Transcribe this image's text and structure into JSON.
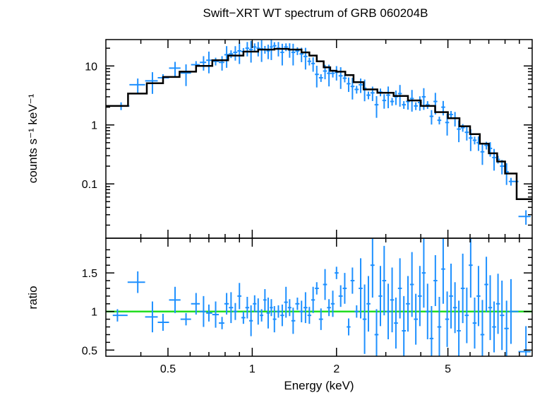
{
  "chart_data": [
    {
      "panel": "spectrum",
      "type": "scatter",
      "title": "Swift−XRT WT spectrum of GRB 060204B",
      "xlabel": "",
      "ylabel": "counts s⁻¹ keV⁻¹",
      "x_scale": "log",
      "y_scale": "log",
      "xlim": [
        0.3,
        10
      ],
      "ylim": [
        0.012,
        28
      ],
      "yticks": [
        0.1,
        1,
        10
      ],
      "ytick_labels": [
        "0.1",
        "1",
        "10"
      ],
      "grid": false,
      "colors": {
        "data": "#1e90ff",
        "model": "#000000"
      },
      "series": [
        {
          "kind": "data",
          "x": [
            0.34,
            0.39,
            0.44,
            0.48,
            0.53,
            0.58,
            0.63,
            0.67,
            0.7,
            0.74,
            0.78,
            0.81,
            0.84,
            0.87,
            0.9,
            0.93,
            0.96,
            0.99,
            1.02,
            1.05,
            1.08,
            1.11,
            1.14,
            1.17,
            1.2,
            1.24,
            1.28,
            1.32,
            1.36,
            1.4,
            1.45,
            1.5,
            1.55,
            1.6,
            1.65,
            1.7,
            1.76,
            1.82,
            1.88,
            1.94,
            2.0,
            2.07,
            2.14,
            2.21,
            2.28,
            2.36,
            2.44,
            2.52,
            2.6,
            2.69,
            2.78,
            2.87,
            2.96,
            3.06,
            3.16,
            3.26,
            3.37,
            3.48,
            3.6,
            3.72,
            3.84,
            3.97,
            4.1,
            4.23,
            4.37,
            4.51,
            4.66,
            4.81,
            4.97,
            5.13,
            5.3,
            5.47,
            5.65,
            5.84,
            6.03,
            6.23,
            6.43,
            6.64,
            6.86,
            7.08,
            7.31,
            7.55,
            7.8,
            8.1,
            8.4,
            9.5
          ],
          "y": [
            2.1,
            4.8,
            5.6,
            6.3,
            9.2,
            7.6,
            10.5,
            11.5,
            12.5,
            12.0,
            11.5,
            15.5,
            16.0,
            17.0,
            18.0,
            17.5,
            20.0,
            19.0,
            21.0,
            20.0,
            19.5,
            19.0,
            18.0,
            21.0,
            22.0,
            20.0,
            17.0,
            21.0,
            19.0,
            17.0,
            18.0,
            16.0,
            14.5,
            12.0,
            11.0,
            7.2,
            6.3,
            8.2,
            7.5,
            7.5,
            7.8,
            6.8,
            6.2,
            5.0,
            4.5,
            4.0,
            4.8,
            4.2,
            3.2,
            3.5,
            2.2,
            3.6,
            2.6,
            3.2,
            2.5,
            3.0,
            3.4,
            2.2,
            2.5,
            2.8,
            2.1,
            2.4,
            3.0,
            2.2,
            1.4,
            2.5,
            1.2,
            2.0,
            1.1,
            1.5,
            1.3,
            0.85,
            0.9,
            0.75,
            0.6,
            0.55,
            0.5,
            0.35,
            0.45,
            0.4,
            0.28,
            0.26,
            0.2,
            0.16,
            0.11,
            0.028
          ]
        },
        {
          "kind": "model",
          "x": [
            0.3,
            0.36,
            0.42,
            0.48,
            0.55,
            0.63,
            0.72,
            0.82,
            0.93,
            1.05,
            1.2,
            1.35,
            1.5,
            1.6,
            1.7,
            1.8,
            1.9,
            2.0,
            2.15,
            2.3,
            2.5,
            2.8,
            3.2,
            3.6,
            4.0,
            4.5,
            5.0,
            5.5,
            6.0,
            6.5,
            7.0,
            7.5,
            8.0,
            8.8,
            10.0
          ],
          "y": [
            2.1,
            3.4,
            5.1,
            6.5,
            8.0,
            10.0,
            12.5,
            15.0,
            17.5,
            19.0,
            19.5,
            19.0,
            17.0,
            15.0,
            12.0,
            9.5,
            8.3,
            8.0,
            7.0,
            5.3,
            4.0,
            3.5,
            3.1,
            2.6,
            2.1,
            1.65,
            1.3,
            0.95,
            0.7,
            0.48,
            0.33,
            0.24,
            0.15,
            0.055,
            0.055
          ]
        }
      ]
    },
    {
      "panel": "ratio",
      "type": "scatter",
      "title": "",
      "xlabel": "Energy (keV)",
      "ylabel": "ratio",
      "x_scale": "log",
      "y_scale": "linear",
      "xlim": [
        0.3,
        10
      ],
      "ylim": [
        0.42,
        1.95
      ],
      "xticks": [
        0.5,
        1,
        2,
        5
      ],
      "xtick_labels": [
        "0.5",
        "1",
        "2",
        "5"
      ],
      "yticks": [
        0.5,
        1,
        1.5
      ],
      "ytick_labels": [
        "0.5",
        "1",
        "1.5"
      ],
      "reference_line": 1,
      "grid": false,
      "colors": {
        "data": "#1e90ff",
        "reference": "#22dd22"
      },
      "series": [
        {
          "kind": "data",
          "x": [
            0.33,
            0.39,
            0.44,
            0.48,
            0.53,
            0.58,
            0.63,
            0.67,
            0.7,
            0.74,
            0.78,
            0.81,
            0.84,
            0.87,
            0.9,
            0.93,
            0.96,
            0.99,
            1.02,
            1.05,
            1.08,
            1.11,
            1.14,
            1.17,
            1.2,
            1.24,
            1.28,
            1.32,
            1.36,
            1.4,
            1.45,
            1.5,
            1.55,
            1.6,
            1.65,
            1.7,
            1.76,
            1.82,
            1.88,
            1.94,
            2.0,
            2.07,
            2.14,
            2.21,
            2.28,
            2.36,
            2.44,
            2.52,
            2.6,
            2.69,
            2.78,
            2.87,
            2.96,
            3.06,
            3.16,
            3.26,
            3.37,
            3.48,
            3.6,
            3.72,
            3.84,
            3.97,
            4.1,
            4.23,
            4.37,
            4.51,
            4.66,
            4.81,
            4.97,
            5.13,
            5.3,
            5.47,
            5.65,
            5.84,
            6.03,
            6.23,
            6.43,
            6.64,
            6.86,
            7.08,
            7.31,
            7.55,
            7.8,
            8.1,
            8.4,
            9.5
          ],
          "y": [
            0.95,
            1.38,
            0.93,
            0.86,
            1.15,
            0.9,
            1.1,
            1.0,
            0.98,
            0.96,
            0.85,
            1.1,
            1.05,
            1.0,
            1.2,
            0.92,
            1.05,
            0.88,
            1.1,
            1.0,
            0.95,
            1.15,
            0.98,
            1.05,
            0.9,
            1.0,
            0.95,
            1.12,
            1.05,
            0.88,
            1.1,
            1.0,
            1.05,
            0.95,
            1.15,
            1.3,
            0.9,
            1.35,
            1.05,
            1.1,
            1.5,
            1.2,
            1.3,
            0.8,
            1.4,
            1.0,
            1.3,
            0.9,
            1.1,
            1.6,
            0.7,
            1.2,
            1.4,
            1.0,
            1.15,
            0.85,
            1.3,
            0.75,
            1.1,
            1.35,
            0.9,
            1.2,
            1.5,
            1.0,
            0.65,
            1.4,
            0.8,
            1.55,
            0.9,
            1.2,
            1.05,
            0.75,
            1.3,
            0.95,
            1.6,
            0.85,
            1.2,
            0.7,
            1.35,
            1.05,
            0.8,
            1.1,
            0.95,
            0.78,
            1.0,
            0.48
          ]
        }
      ]
    }
  ]
}
